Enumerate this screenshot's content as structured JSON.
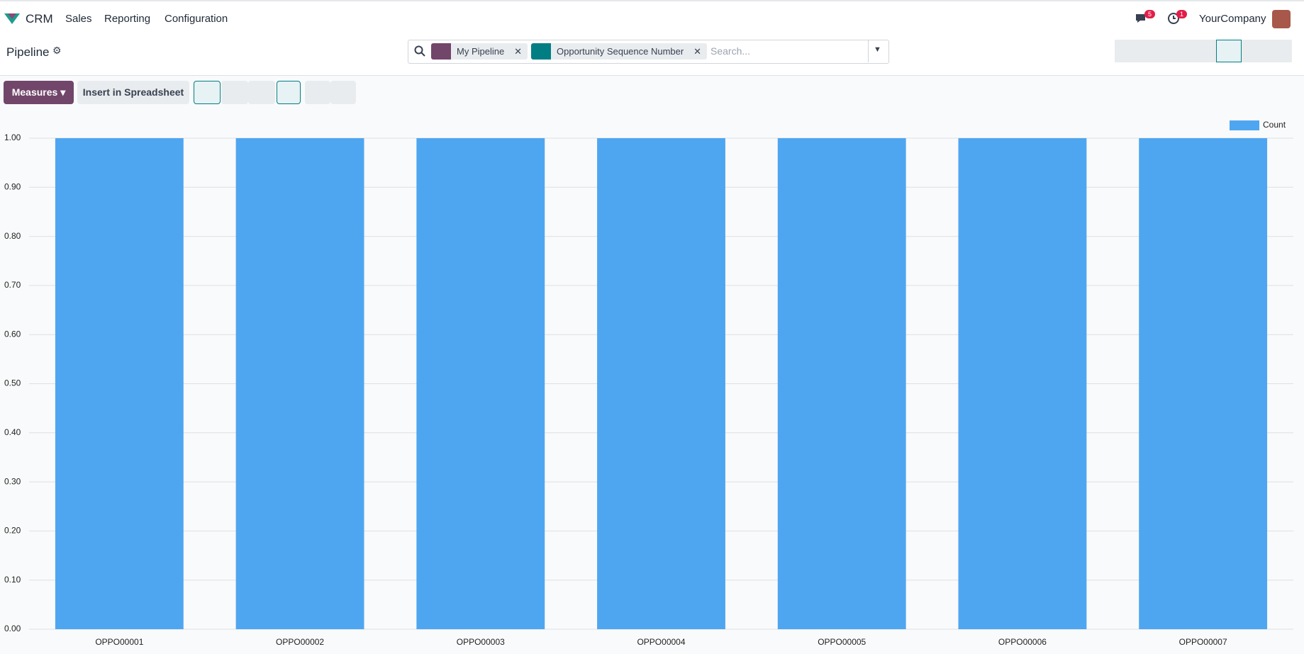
{
  "navbar": {
    "app": "CRM",
    "menu": [
      "Sales",
      "Reporting",
      "Configuration"
    ],
    "messages_count": 5,
    "activities_count": 1,
    "company": "YourCompany"
  },
  "control_panel": {
    "title": "Pipeline",
    "facets": [
      "My Pipeline",
      "Opportunity Sequence Number"
    ],
    "search_placeholder": "Search..."
  },
  "toolbar": {
    "measures": "Measures",
    "insert": "Insert in Spreadsheet"
  },
  "chart_data": {
    "type": "bar",
    "categories": [
      "OPPO00001",
      "OPPO00002",
      "OPPO00003",
      "OPPO00004",
      "OPPO00005",
      "OPPO00006",
      "OPPO00007"
    ],
    "series": [
      {
        "name": "Count",
        "color": "#4fa6f0",
        "values": [
          1,
          1,
          1,
          1,
          1,
          1,
          1
        ]
      }
    ],
    "ylim": [
      0,
      1
    ],
    "yticks": [
      {
        "value": 0,
        "label": "0.00"
      },
      {
        "value": 0.1,
        "label": "0.10"
      },
      {
        "value": 0.2,
        "label": "0.20"
      },
      {
        "value": 0.3,
        "label": "0.30"
      },
      {
        "value": 0.4,
        "label": "0.40"
      },
      {
        "value": 0.5,
        "label": "0.50"
      },
      {
        "value": 0.6,
        "label": "0.60"
      },
      {
        "value": 0.7,
        "label": "0.70"
      },
      {
        "value": 0.8,
        "label": "0.80"
      },
      {
        "value": 0.9,
        "label": "0.90"
      },
      {
        "value": 1,
        "label": "1.00"
      }
    ],
    "grid": true,
    "legend": "top-right"
  }
}
